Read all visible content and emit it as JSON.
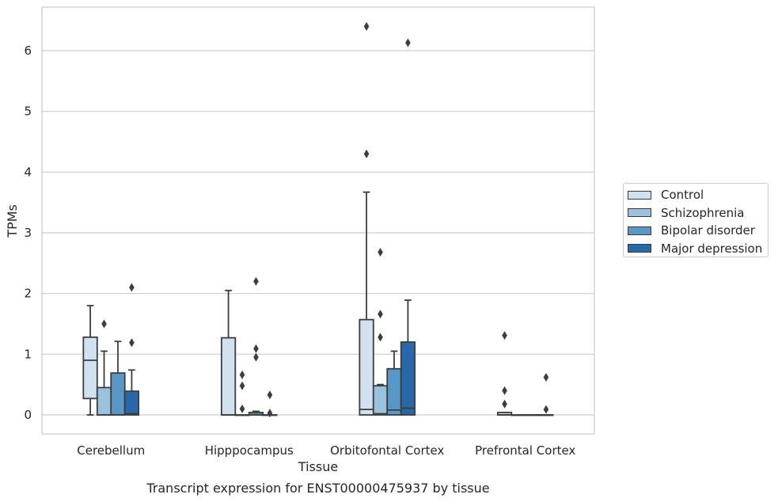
{
  "chart_data": {
    "type": "box",
    "title": "Transcript expression for ENST00000475937 by tissue",
    "xlabel": "Tissue",
    "ylabel": "TPMs",
    "ylim": [
      -0.3,
      6.75
    ],
    "yticks": [
      0,
      1,
      2,
      3,
      4,
      5,
      6
    ],
    "grid": true,
    "legend_position": "right",
    "categories": [
      "Cerebellum",
      "Hipppocampus",
      "Orbitofontal Cortex",
      "Prefrontal Cortex"
    ],
    "series": [
      {
        "name": "Control",
        "color": "#d2e1f0",
        "boxes": [
          {
            "whislo": 0,
            "q1": 0.27,
            "med": 0.9,
            "q3": 1.28,
            "whishi": 1.8,
            "fliers": []
          },
          {
            "whislo": 0,
            "q1": 0,
            "med": 0,
            "q3": 1.27,
            "whishi": 2.05,
            "fliers": []
          },
          {
            "whislo": 0,
            "q1": 0,
            "med": 0.09,
            "q3": 1.57,
            "whishi": 3.67,
            "fliers": [
              4.3,
              6.4
            ]
          },
          {
            "whislo": 0,
            "q1": 0,
            "med": 0,
            "q3": 0.04,
            "whishi": 0.04,
            "fliers": [
              0.18,
              0.4,
              1.31
            ]
          }
        ]
      },
      {
        "name": "Schizophrenia",
        "color": "#9ac2dc",
        "boxes": [
          {
            "whislo": 0,
            "q1": 0,
            "med": 0,
            "q3": 0.45,
            "whishi": 1.05,
            "fliers": [
              1.5
            ]
          },
          {
            "whislo": 0,
            "q1": 0,
            "med": 0,
            "q3": 0,
            "whishi": 0,
            "fliers": [
              0.1,
              0.48,
              0.66
            ]
          },
          {
            "whislo": 0,
            "q1": 0,
            "med": 0.02,
            "q3": 0.48,
            "whishi": 0.5,
            "fliers": [
              1.28,
              1.66,
              2.68
            ]
          },
          {
            "whislo": 0,
            "q1": 0,
            "med": 0,
            "q3": 0,
            "whishi": 0,
            "fliers": []
          }
        ]
      },
      {
        "name": "Bipolar disorder",
        "color": "#5898c6",
        "boxes": [
          {
            "whislo": 0,
            "q1": 0,
            "med": 0,
            "q3": 0.69,
            "whishi": 1.21,
            "fliers": []
          },
          {
            "whislo": 0,
            "q1": 0,
            "med": 0,
            "q3": 0.04,
            "whishi": 0.06,
            "fliers": [
              0.95,
              1.09,
              2.2
            ]
          },
          {
            "whislo": 0,
            "q1": 0,
            "med": 0.08,
            "q3": 0.76,
            "whishi": 1.05,
            "fliers": []
          },
          {
            "whislo": 0,
            "q1": 0,
            "med": 0,
            "q3": 0,
            "whishi": 0,
            "fliers": []
          }
        ]
      },
      {
        "name": "Major depression",
        "color": "#2868a8",
        "boxes": [
          {
            "whislo": 0,
            "q1": 0,
            "med": 0.02,
            "q3": 0.39,
            "whishi": 0.74,
            "fliers": [
              1.19,
              2.1
            ]
          },
          {
            "whislo": 0,
            "q1": 0,
            "med": 0,
            "q3": 0,
            "whishi": 0,
            "fliers": [
              0.03,
              0.33
            ]
          },
          {
            "whislo": 0,
            "q1": 0,
            "med": 0.11,
            "q3": 1.2,
            "whishi": 1.89,
            "fliers": [
              6.13
            ]
          },
          {
            "whislo": 0,
            "q1": 0,
            "med": 0,
            "q3": 0,
            "whishi": 0,
            "fliers": [
              0.09,
              0.62
            ]
          }
        ]
      }
    ]
  }
}
